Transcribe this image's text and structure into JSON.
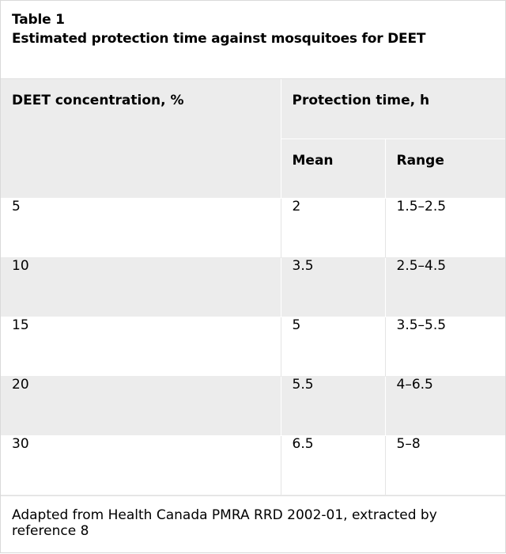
{
  "caption": {
    "label": "Table 1",
    "title": "Estimated protection time against mosquitoes for DEET"
  },
  "table": {
    "headers": {
      "concentration": "DEET concentration, %",
      "protection_time": "Protection time, h",
      "mean": "Mean",
      "range": "Range"
    },
    "rows": [
      {
        "concentration": "5",
        "mean": "2",
        "range": "1.5–2.5"
      },
      {
        "concentration": "10",
        "mean": "3.5",
        "range": "2.5–4.5"
      },
      {
        "concentration": "15",
        "mean": "5",
        "range": "3.5–5.5"
      },
      {
        "concentration": "20",
        "mean": "5.5",
        "range": "4–6.5"
      },
      {
        "concentration": "30",
        "mean": "6.5",
        "range": "5–8"
      }
    ]
  },
  "footnote": "Adapted from Health Canada PMRA RRD 2002-01, extracted by reference 8",
  "colors": {
    "header_background": "#ececec",
    "row_alt_background": "#ececec"
  }
}
